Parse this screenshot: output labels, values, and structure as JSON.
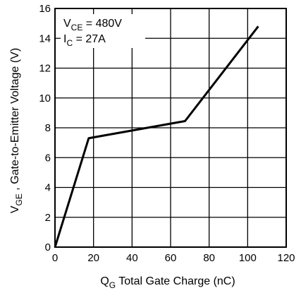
{
  "chart_data": {
    "type": "line",
    "xlabel": {
      "main": "Q",
      "sub": "G",
      "rest": " Total Gate Charge (nC)"
    },
    "ylabel": {
      "main": "V",
      "sub": "GE",
      "rest": " , Gate-to-Emitter Voltage (V)"
    },
    "xlim": [
      0,
      120
    ],
    "ylim": [
      0,
      16
    ],
    "xticks": [
      "0",
      "20",
      "40",
      "60",
      "80",
      "100",
      "120"
    ],
    "yticks": [
      "0",
      "2",
      "4",
      "6",
      "8",
      "10",
      "12",
      "14",
      "16"
    ],
    "grid": true,
    "annotations": [
      {
        "main": "V",
        "sub": "CE",
        "rest": " = 480V"
      },
      {
        "main": "I",
        "sub": "C",
        "rest": " = 27A"
      }
    ],
    "series": [
      {
        "x": [
          0,
          17.5,
          67.5,
          105.5
        ],
        "y": [
          0,
          7.3,
          8.45,
          14.8
        ]
      }
    ]
  }
}
